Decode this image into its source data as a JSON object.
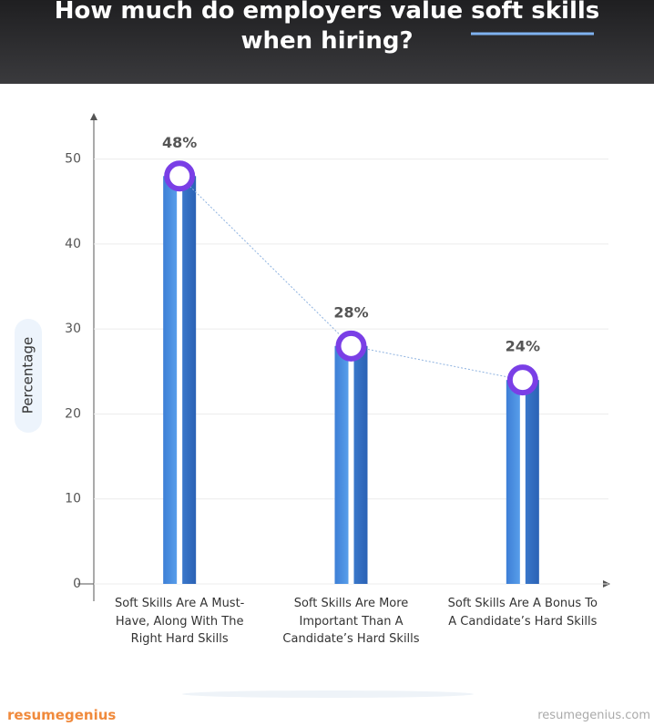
{
  "chart_data": {
    "type": "bar",
    "title": "How much do employers value soft skills when hiring?",
    "y_label": "Percentage",
    "categories": [
      "Soft Skills Are A Must-Have, Along With The Right Hard Skills",
      "Soft Skills Are More Important Than A Candidate’s Hard Skills",
      "Soft Skills Are A Bonus To A Candidate’s Hard Skills"
    ],
    "values": [
      48,
      28,
      24
    ],
    "value_labels": [
      "48%",
      "28%",
      "24%"
    ],
    "color": "#4a8ddc",
    "marker_color": "#7a3fe6",
    "ylim": [
      0,
      55
    ],
    "yticks": [
      0,
      10,
      20,
      30,
      40,
      50
    ],
    "grid": true
  },
  "footer": {
    "logo_1": "resume",
    "logo_2": "genius",
    "site": "resumegenius.com"
  }
}
